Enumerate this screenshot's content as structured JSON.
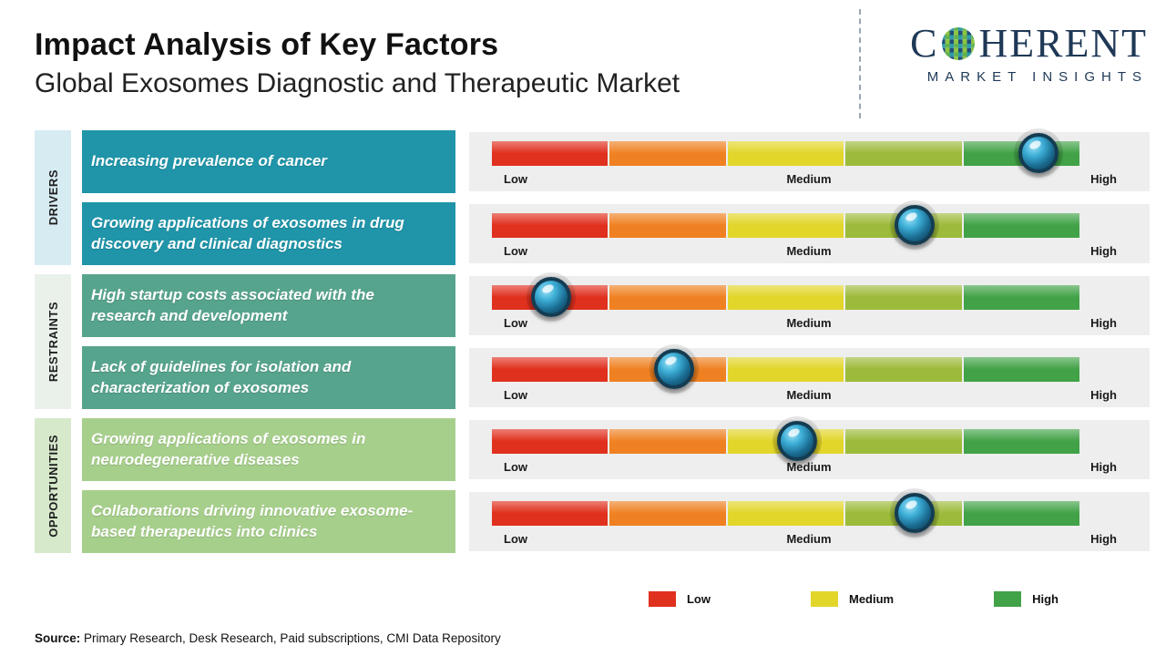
{
  "header": {
    "title": "Impact Analysis of Key Factors",
    "subtitle": "Global Exosomes Diagnostic and Therapeutic Market"
  },
  "logo": {
    "brand_c": "C",
    "brand_rest": "HERENT",
    "tagline": "MARKET INSIGHTS",
    "color": "#1e3856"
  },
  "chart_data": {
    "type": "impact-slider",
    "title": "Impact Analysis of Key Factors",
    "subtitle": "Global Exosomes Diagnostic and Therapeutic Market",
    "scale_labels": {
      "low": "Low",
      "medium": "Medium",
      "high": "High"
    },
    "scale_range": [
      0,
      100
    ],
    "segment_colors": [
      "#e0301e",
      "#ef8122",
      "#e2d62b",
      "#9cbb3a",
      "#41a247"
    ],
    "groups": [
      {
        "label": "DRIVERS",
        "box_color": "#2095a9",
        "label_bg": "#d7ebf3",
        "factors": [
          {
            "text": "Increasing prevalence of cancer",
            "impact_pct": 93
          },
          {
            "text": "Growing applications of exosomes in drug discovery and clinical diagnostics",
            "impact_pct": 72
          }
        ]
      },
      {
        "label": "RESTRAINTS",
        "box_color": "#57a48e",
        "label_bg": "#e9f1ea",
        "factors": [
          {
            "text": "High startup costs associated with the research and development",
            "impact_pct": 10
          },
          {
            "text": "Lack of guidelines for isolation and characterization of exosomes",
            "impact_pct": 31
          }
        ]
      },
      {
        "label": "OPPORTUNITIES",
        "box_color": "#a7cf8c",
        "label_bg": "#d6e9cb",
        "factors": [
          {
            "text": "Growing applications of exosomes in neurodegenerative diseases",
            "impact_pct": 52
          },
          {
            "text": "Collaborations driving innovative exosome-based therapeutics into clinics",
            "impact_pct": 72
          }
        ]
      }
    ]
  },
  "legend": [
    {
      "label": "Low",
      "color": "#e0301e"
    },
    {
      "label": "Medium",
      "color": "#e2d62b"
    },
    {
      "label": "High",
      "color": "#41a247"
    }
  ],
  "source": {
    "label": "Source:",
    "text": "Primary Research, Desk Research, Paid subscriptions, CMI Data Repository"
  }
}
